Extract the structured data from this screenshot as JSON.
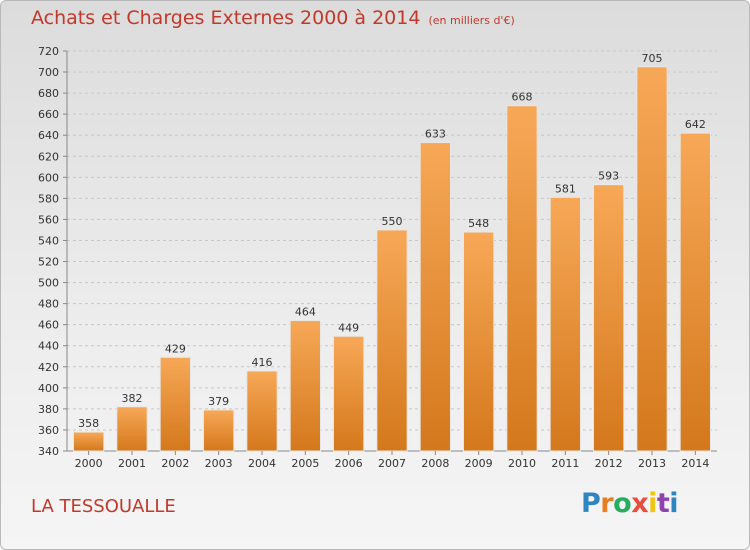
{
  "title": "Achats et Charges Externes 2000 à 2014",
  "unit_label": "(en milliers d'€)",
  "location": "LA TESSOUALLE",
  "logo": {
    "text": "Proxiti",
    "letters": [
      {
        "ch": "P",
        "color": "#2e86c1"
      },
      {
        "ch": "r",
        "color": "#e67e22"
      },
      {
        "ch": "o",
        "color": "#27ae60"
      },
      {
        "ch": "x",
        "color": "#e74c3c"
      },
      {
        "ch": "i",
        "color": "#f1c40f"
      },
      {
        "ch": "t",
        "color": "#8e44ad"
      },
      {
        "ch": "i",
        "color": "#2e86c1"
      }
    ]
  },
  "colors": {
    "accent": "#c0392b",
    "bar_top": "#f7a857",
    "bar_bottom": "#d4781c"
  },
  "chart_data": {
    "type": "bar",
    "categories": [
      "2000",
      "2001",
      "2002",
      "2003",
      "2004",
      "2005",
      "2006",
      "2007",
      "2008",
      "2009",
      "2010",
      "2011",
      "2012",
      "2013",
      "2014"
    ],
    "values": [
      358,
      382,
      429,
      379,
      416,
      464,
      449,
      550,
      633,
      548,
      668,
      581,
      593,
      705,
      642
    ],
    "ylim": [
      340,
      720
    ],
    "yticks": [
      340,
      360,
      380,
      400,
      420,
      440,
      460,
      480,
      500,
      520,
      540,
      560,
      580,
      600,
      620,
      640,
      660,
      680,
      700,
      720
    ],
    "grid": true,
    "xlabel": "",
    "ylabel": ""
  }
}
